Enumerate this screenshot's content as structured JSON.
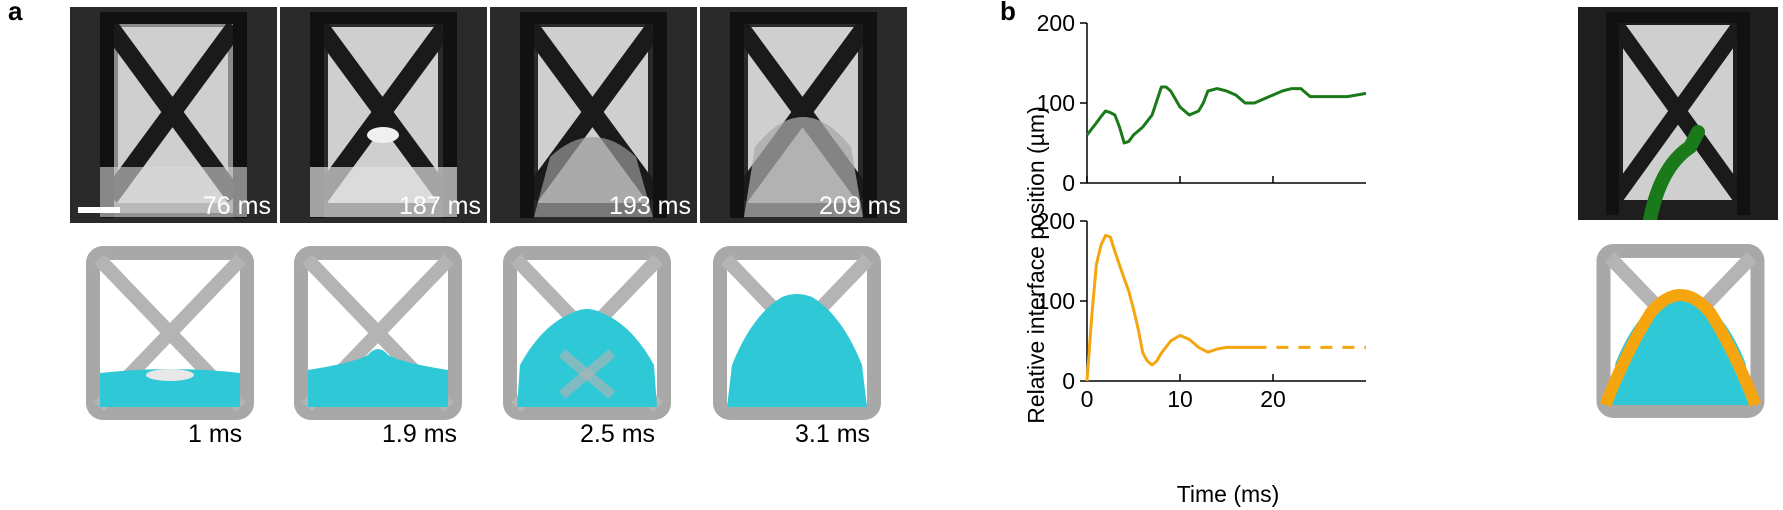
{
  "panel_a": {
    "letter": "a",
    "photo_times": [
      "76 ms",
      "187 ms",
      "193 ms",
      "209 ms"
    ],
    "sim_times": [
      "1 ms",
      "1.9 ms",
      "2.5 ms",
      "3.1 ms"
    ],
    "fluid_color": "#2fc8d6"
  },
  "panel_b": {
    "letter": "b",
    "colors": {
      "experiment": "#1a7a1a",
      "simulation": "#f5a60e"
    }
  },
  "chart_data": [
    {
      "type": "line",
      "ylabel": "Relative interface position (µm)",
      "xlim": [
        0,
        30
      ],
      "ylim": [
        0,
        200
      ],
      "yticks": [
        "0",
        "100",
        "200"
      ],
      "xticks": [
        0,
        10,
        20
      ],
      "series": [
        {
          "color": "#1a7a1a",
          "x": [
            0,
            1,
            1.5,
            2,
            2.5,
            3,
            3.5,
            4,
            4.5,
            5,
            6,
            7,
            8,
            8.5,
            9,
            10,
            10.5,
            11,
            12,
            12.5,
            13,
            14,
            15,
            16,
            17,
            18,
            19,
            20,
            21,
            22,
            23,
            24,
            25,
            26,
            27,
            28,
            29,
            30
          ],
          "y": [
            60,
            75,
            83,
            90,
            88,
            85,
            70,
            50,
            52,
            60,
            70,
            85,
            120,
            120,
            115,
            95,
            90,
            85,
            90,
            100,
            115,
            118,
            115,
            110,
            100,
            100,
            105,
            110,
            115,
            118,
            118,
            108,
            108,
            108,
            108,
            108,
            110,
            112
          ]
        }
      ]
    },
    {
      "type": "line",
      "xlabel": "Time (ms)",
      "xlim": [
        0,
        30
      ],
      "ylim": [
        0,
        200
      ],
      "yticks": [
        "0",
        "100",
        "200"
      ],
      "xticks": [
        "0",
        "10",
        "20"
      ],
      "series": [
        {
          "color": "#f5a60e",
          "x": [
            0,
            0.5,
            1,
            1.5,
            2,
            2.5,
            3,
            3.5,
            4,
            4.5,
            5,
            5.5,
            6,
            6.5,
            7,
            7.5,
            8,
            9,
            10,
            11,
            12,
            13,
            14,
            15,
            16,
            17,
            18
          ],
          "y": [
            0,
            80,
            145,
            170,
            182,
            180,
            162,
            145,
            128,
            112,
            90,
            65,
            35,
            25,
            20,
            25,
            35,
            50,
            57,
            52,
            42,
            36,
            40,
            42,
            42,
            42,
            42
          ]
        },
        {
          "color": "#f5a60e",
          "style": "dashed",
          "x": [
            18,
            30
          ],
          "y": [
            42,
            42
          ]
        }
      ]
    }
  ]
}
